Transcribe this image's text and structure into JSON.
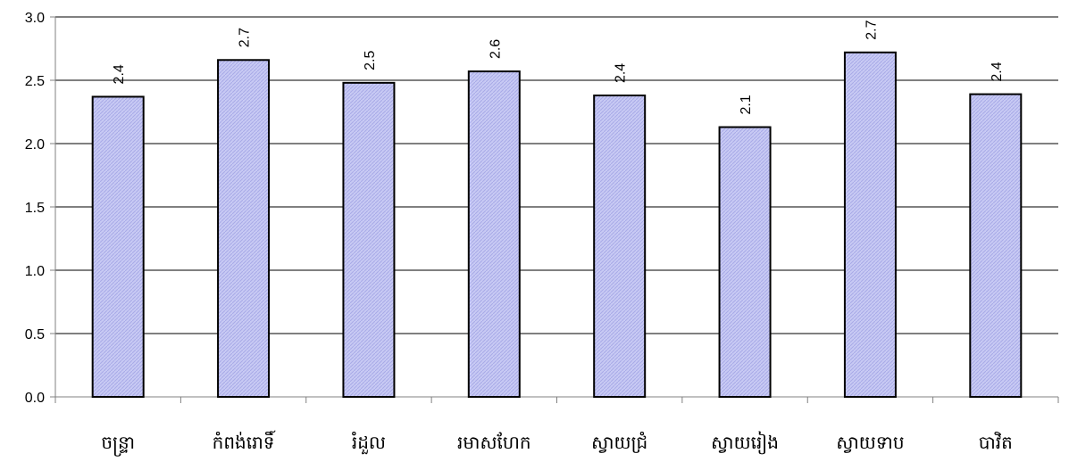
{
  "chart_data": {
    "type": "bar",
    "categories": [
      "ចន្ទ្រា",
      "កំពង់រោទិ៍",
      "រំដួល",
      "រមាសហែក",
      "ស្វាយជ្រំ",
      "ស្វាយរៀង",
      "ស្វាយទាប",
      "បាវិត"
    ],
    "values": [
      2.37,
      2.66,
      2.48,
      2.57,
      2.38,
      2.13,
      2.72,
      2.39
    ],
    "data_labels": [
      "2.4",
      "2.7",
      "2.5",
      "2.6",
      "2.4",
      "2.1",
      "2.7",
      "2.4"
    ],
    "yticks": [
      "0.0",
      "0.5",
      "1.0",
      "1.5",
      "2.0",
      "2.5",
      "3.0"
    ],
    "ylim": [
      0,
      3.0
    ],
    "title": "",
    "xlabel": "",
    "ylabel": "",
    "grid": "horizontal",
    "legend": "none",
    "colors": {
      "bar_fill": "#c8caf4",
      "bar_hatch": "#a8aae8",
      "bar_stroke": "#000000",
      "grid": "#000000",
      "axis": "#808080"
    }
  }
}
